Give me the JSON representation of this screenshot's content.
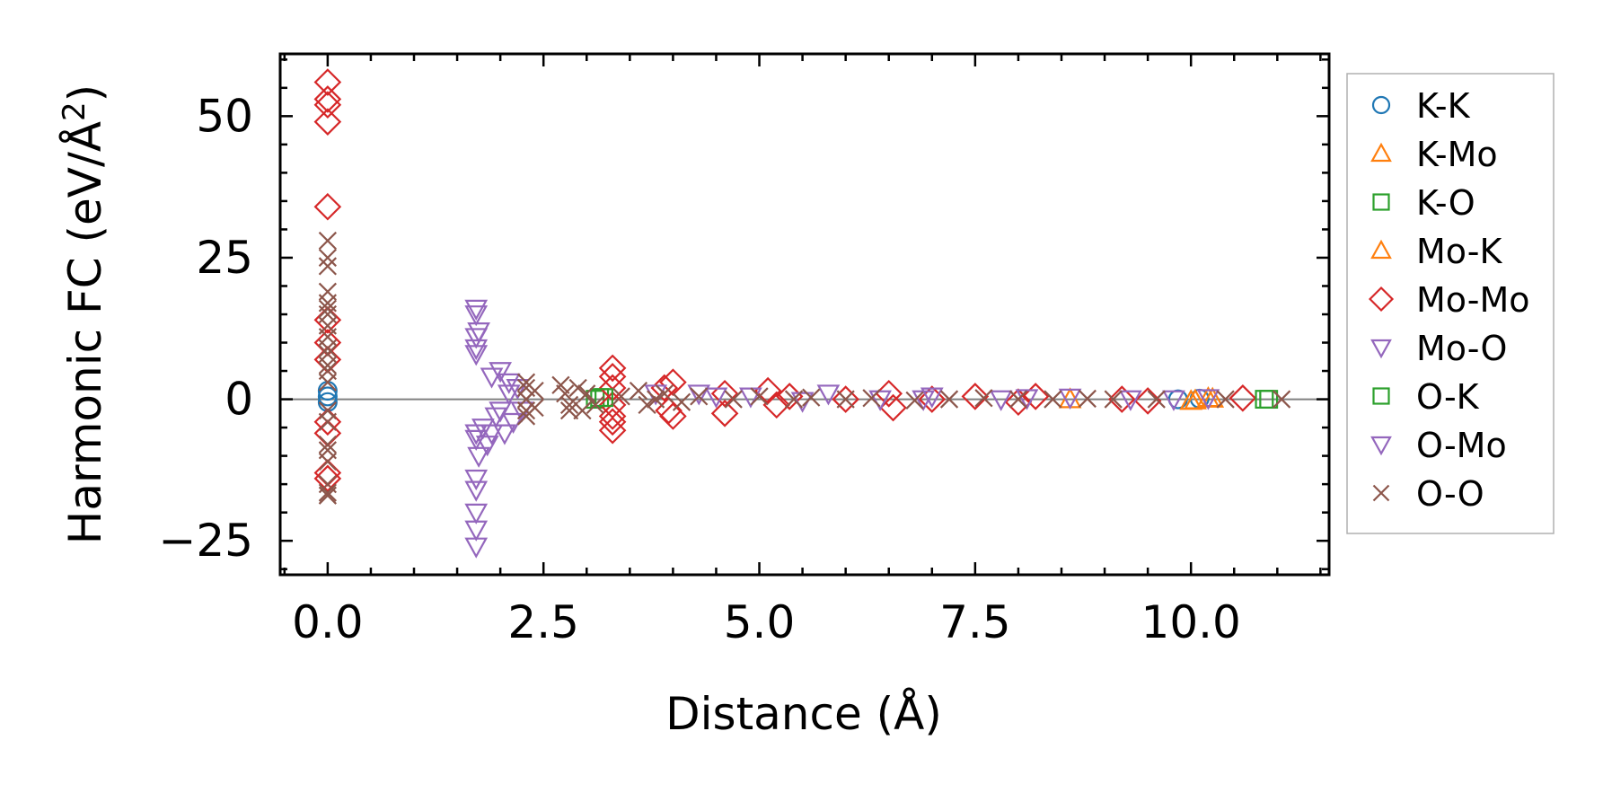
{
  "chart_data": {
    "type": "scatter",
    "xlabel": "Distance (Å)",
    "ylabel": "Harmonic FC (eV/Å",
    "ylabel_sup": "2",
    "ylabel_close": ")",
    "xlim": [
      -0.55,
      11.6
    ],
    "ylim": [
      -31,
      61
    ],
    "xticks": [
      0.0,
      2.5,
      5.0,
      7.5,
      10.0
    ],
    "xtick_labels": [
      "0.0",
      "2.5",
      "5.0",
      "7.5",
      "10.0"
    ],
    "yticks": [
      -25,
      0,
      25,
      50
    ],
    "ytick_labels": [
      "−25",
      "0",
      "25",
      "50"
    ],
    "grid": false,
    "zero_line": true,
    "legend_position": "outside-right",
    "series": [
      {
        "name": "K-K",
        "marker": "circle",
        "color": "#1f77b4",
        "points": [
          [
            0,
            1.5
          ],
          [
            0,
            0.5
          ],
          [
            0,
            -0.5
          ],
          [
            9.85,
            0
          ],
          [
            10.1,
            0.1
          ]
        ]
      },
      {
        "name": "K-Mo",
        "marker": "triangle-up",
        "color": "#ff7f0e",
        "points": [
          [
            8.6,
            0
          ],
          [
            10.0,
            -0.3
          ],
          [
            10.2,
            0.2
          ]
        ]
      },
      {
        "name": "K-O",
        "marker": "square",
        "color": "#2ca02c",
        "points": [
          [
            3.1,
            0
          ],
          [
            3.15,
            0.3
          ],
          [
            10.9,
            0
          ]
        ]
      },
      {
        "name": "Mo-K",
        "marker": "triangle-up",
        "color": "#ff7f0e",
        "points": [
          [
            10.05,
            -0.2
          ],
          [
            10.25,
            0.1
          ]
        ]
      },
      {
        "name": "Mo-Mo",
        "marker": "diamond",
        "color": "#d62728",
        "points": [
          [
            0,
            56
          ],
          [
            0,
            53
          ],
          [
            0,
            52
          ],
          [
            0,
            49
          ],
          [
            0,
            34
          ],
          [
            0,
            14
          ],
          [
            0,
            10
          ],
          [
            0,
            7
          ],
          [
            0,
            -4
          ],
          [
            0,
            -6
          ],
          [
            0,
            -13
          ],
          [
            0,
            -14
          ],
          [
            3.3,
            5.5
          ],
          [
            3.3,
            4
          ],
          [
            3.3,
            2
          ],
          [
            3.3,
            -1
          ],
          [
            3.3,
            -3
          ],
          [
            3.3,
            -4
          ],
          [
            3.3,
            -5.5
          ],
          [
            3.9,
            2
          ],
          [
            3.95,
            -2
          ],
          [
            4.0,
            3
          ],
          [
            4.0,
            -3
          ],
          [
            4.6,
            -2.5
          ],
          [
            4.6,
            1
          ],
          [
            5.1,
            1.5
          ],
          [
            5.2,
            -1
          ],
          [
            5.35,
            0.5
          ],
          [
            6.0,
            0
          ],
          [
            6.5,
            1
          ],
          [
            6.55,
            -1.5
          ],
          [
            7.0,
            0
          ],
          [
            7.5,
            0.5
          ],
          [
            8.0,
            -0.5
          ],
          [
            8.2,
            0.5
          ],
          [
            9.2,
            0
          ],
          [
            9.5,
            -0.3
          ],
          [
            10.6,
            0.2
          ]
        ]
      },
      {
        "name": "Mo-O",
        "marker": "triangle-down",
        "color": "#9467bd",
        "points": [
          [
            1.72,
            16
          ],
          [
            1.72,
            15
          ],
          [
            1.72,
            11
          ],
          [
            1.72,
            9
          ],
          [
            1.72,
            8
          ],
          [
            1.72,
            -6
          ],
          [
            1.72,
            -7
          ],
          [
            1.72,
            -14
          ],
          [
            1.72,
            -16
          ],
          [
            1.72,
            -20
          ],
          [
            1.72,
            -23
          ],
          [
            1.72,
            -26
          ],
          [
            1.8,
            -5
          ],
          [
            1.85,
            -8
          ],
          [
            1.9,
            4
          ],
          [
            1.95,
            -3
          ],
          [
            2.0,
            5
          ],
          [
            2.05,
            -6
          ],
          [
            2.1,
            3
          ],
          [
            2.15,
            -4
          ],
          [
            2.2,
            2
          ],
          [
            2.25,
            -2
          ],
          [
            3.8,
            1
          ],
          [
            4.3,
            1
          ],
          [
            4.9,
            0.5
          ],
          [
            5.8,
            1
          ],
          [
            6.4,
            0
          ],
          [
            7.0,
            0.5
          ],
          [
            7.8,
            0
          ],
          [
            8.6,
            0.3
          ],
          [
            9.3,
            0
          ],
          [
            10.2,
            0.2
          ]
        ]
      },
      {
        "name": "O-K",
        "marker": "square",
        "color": "#2ca02c",
        "points": [
          [
            3.2,
            0.3
          ],
          [
            10.85,
            0
          ]
        ]
      },
      {
        "name": "O-Mo",
        "marker": "triangle-down",
        "color": "#9467bd",
        "points": [
          [
            1.75,
            12
          ],
          [
            1.75,
            -10
          ],
          [
            1.9,
            -6
          ],
          [
            2.0,
            -2
          ],
          [
            2.1,
            1
          ],
          [
            4.5,
            0.5
          ],
          [
            5.5,
            -0.3
          ],
          [
            6.9,
            0
          ],
          [
            8.1,
            0.2
          ],
          [
            9.8,
            0
          ]
        ]
      },
      {
        "name": "O-O",
        "marker": "x",
        "color": "#8c564b",
        "points": [
          [
            0,
            28
          ],
          [
            0,
            25
          ],
          [
            0,
            23.5
          ],
          [
            0,
            19
          ],
          [
            0,
            17
          ],
          [
            0,
            16
          ],
          [
            0,
            15
          ],
          [
            0,
            13
          ],
          [
            0,
            11
          ],
          [
            0,
            9
          ],
          [
            0,
            8
          ],
          [
            0,
            6
          ],
          [
            0,
            5
          ],
          [
            0,
            3
          ],
          [
            0,
            -2
          ],
          [
            0,
            -4
          ],
          [
            0,
            -8
          ],
          [
            0,
            -9
          ],
          [
            0,
            -11
          ],
          [
            0,
            -15
          ],
          [
            0,
            -16.5
          ],
          [
            0,
            -17
          ],
          [
            2.3,
            3
          ],
          [
            2.3,
            2
          ],
          [
            2.3,
            0
          ],
          [
            2.3,
            -2
          ],
          [
            2.3,
            -3
          ],
          [
            2.4,
            1.5
          ],
          [
            2.4,
            -1.5
          ],
          [
            2.7,
            2.5
          ],
          [
            2.75,
            1
          ],
          [
            2.8,
            -1
          ],
          [
            2.8,
            -2
          ],
          [
            2.9,
            2
          ],
          [
            2.95,
            -2
          ],
          [
            3.0,
            1
          ],
          [
            3.1,
            -1
          ],
          [
            3.4,
            0.5
          ],
          [
            3.6,
            1.5
          ],
          [
            3.7,
            -1
          ],
          [
            3.8,
            0
          ],
          [
            3.9,
            1
          ],
          [
            4.1,
            -0.5
          ],
          [
            4.3,
            0.5
          ],
          [
            4.7,
            0
          ],
          [
            5.0,
            0.5
          ],
          [
            5.4,
            0
          ],
          [
            5.6,
            0.3
          ],
          [
            6.0,
            0
          ],
          [
            6.3,
            0.2
          ],
          [
            6.8,
            -0.2
          ],
          [
            7.2,
            0
          ],
          [
            7.6,
            0.2
          ],
          [
            8.0,
            0
          ],
          [
            8.4,
            0
          ],
          [
            8.8,
            0.1
          ],
          [
            9.1,
            0
          ],
          [
            9.6,
            0
          ],
          [
            10.4,
            0
          ],
          [
            11.05,
            0
          ]
        ]
      }
    ]
  }
}
